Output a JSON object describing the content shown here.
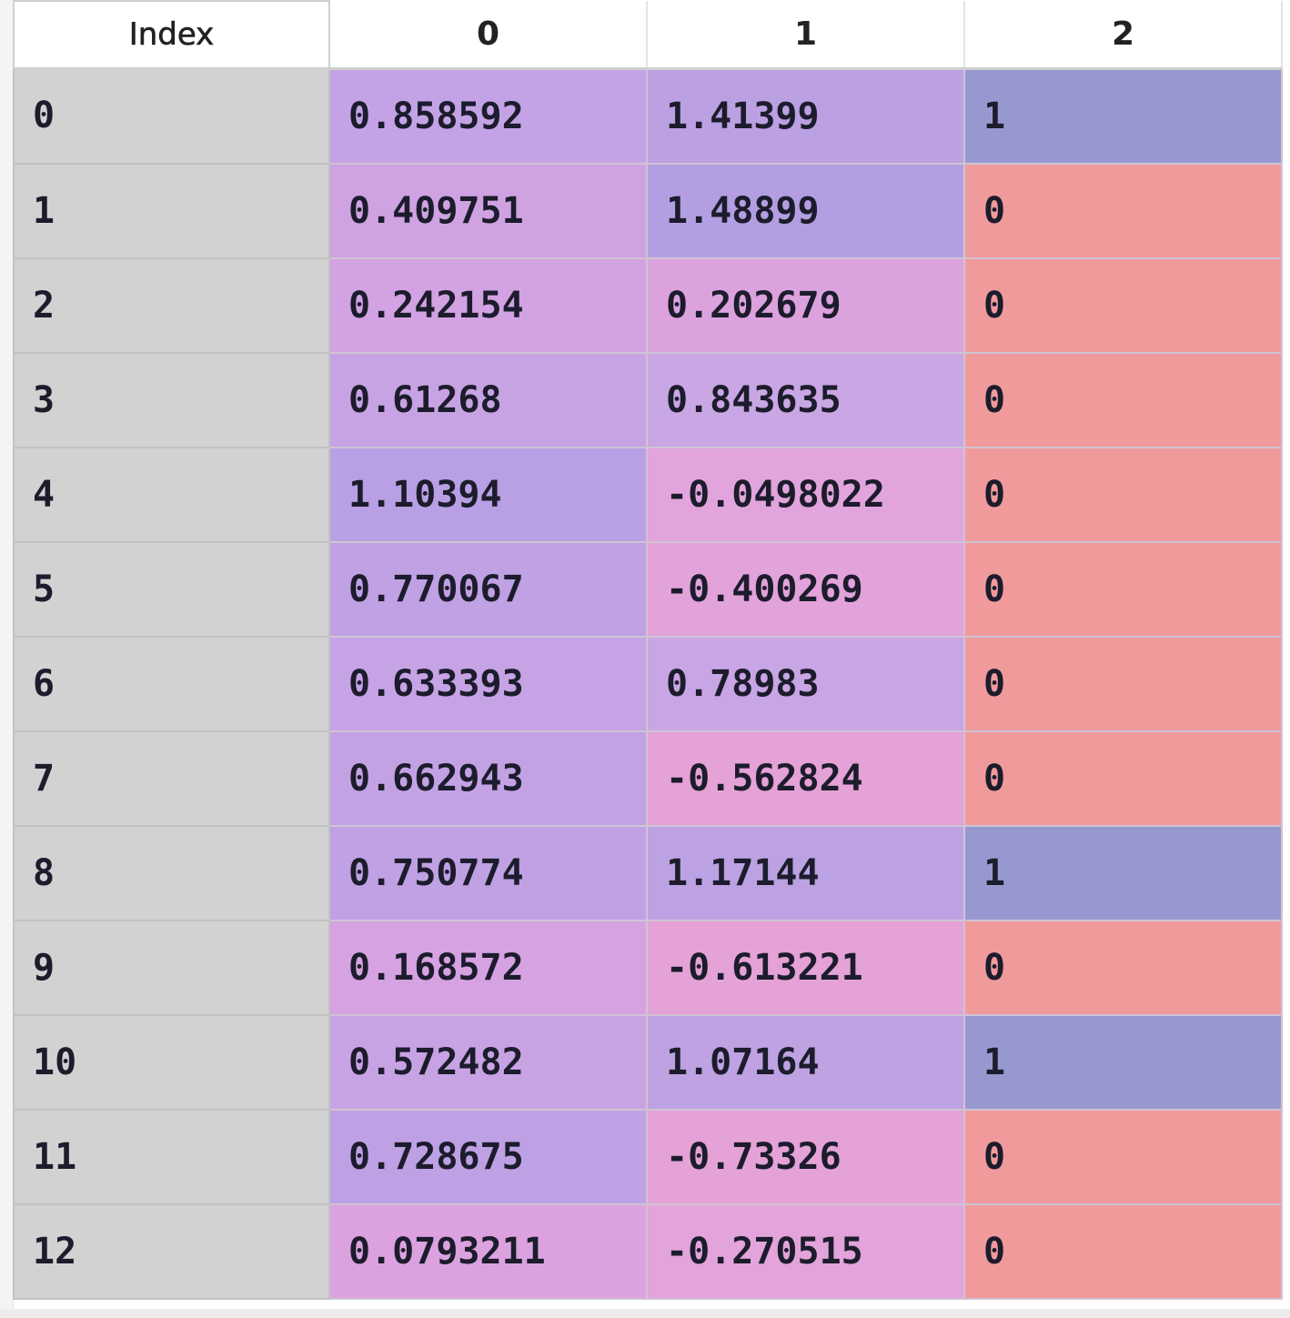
{
  "columns": [
    "Index",
    "0",
    "1",
    "2"
  ],
  "rows": [
    {
      "index": "0",
      "c0": "0.858592",
      "c1": "1.41399",
      "c2": "1",
      "bg0": "#c3a3e6",
      "bg1": "#bba0e2",
      "bg2": "#9898d0"
    },
    {
      "index": "1",
      "c0": "0.409751",
      "c1": "1.48899",
      "c2": "0",
      "bg0": "#cfa2e2",
      "bg1": "#b39ee2",
      "bg2": "#f09a9c"
    },
    {
      "index": "2",
      "c0": "0.242154",
      "c1": "0.202679",
      "c2": "0",
      "bg0": "#d3a2e2",
      "bg1": "#dca2de",
      "bg2": "#f09a9c"
    },
    {
      "index": "3",
      "c0": "0.61268",
      "c1": "0.843635",
      "c2": "0",
      "bg0": "#c7a3e4",
      "bg1": "#c9a6e4",
      "bg2": "#f09a9c"
    },
    {
      "index": "4",
      "c0": "1.10394",
      "c1": "-0.0498022",
      "c2": "0",
      "bg0": "#b9a0e4",
      "bg1": "#e2a4dc",
      "bg2": "#f09a9c"
    },
    {
      "index": "5",
      "c0": "0.770067",
      "c1": "-0.400269",
      "c2": "0",
      "bg0": "#c0a1e4",
      "bg1": "#e2a2da",
      "bg2": "#f09a9c"
    },
    {
      "index": "6",
      "c0": "0.633393",
      "c1": "0.78983",
      "c2": "0",
      "bg0": "#c6a3e4",
      "bg1": "#c8a5e4",
      "bg2": "#f09a9c"
    },
    {
      "index": "7",
      "c0": "0.662943",
      "c1": "-0.562824",
      "c2": "0",
      "bg0": "#c3a2e4",
      "bg1": "#e4a2d6",
      "bg2": "#f09a9c"
    },
    {
      "index": "8",
      "c0": "0.750774",
      "c1": "1.17144",
      "c2": "1",
      "bg0": "#bfa1e4",
      "bg1": "#bca2e2",
      "bg2": "#9898d0"
    },
    {
      "index": "9",
      "c0": "0.168572",
      "c1": "-0.613221",
      "c2": "0",
      "bg0": "#d6a2e2",
      "bg1": "#e4a2d6",
      "bg2": "#f09a9c"
    },
    {
      "index": "10",
      "c0": "0.572482",
      "c1": "1.07164",
      "c2": "1",
      "bg0": "#c8a3e4",
      "bg1": "#bea2e2",
      "bg2": "#9898d0"
    },
    {
      "index": "11",
      "c0": "0.728675",
      "c1": "-0.73326",
      "c2": "0",
      "bg0": "#bea1e4",
      "bg1": "#e4a2d6",
      "bg2": "#f09a9c"
    },
    {
      "index": "12",
      "c0": "0.0793211",
      "c1": "-0.270515",
      "c2": "0",
      "bg0": "#dca2e0",
      "bg1": "#e2a4da",
      "bg2": "#f09a9c"
    }
  ]
}
